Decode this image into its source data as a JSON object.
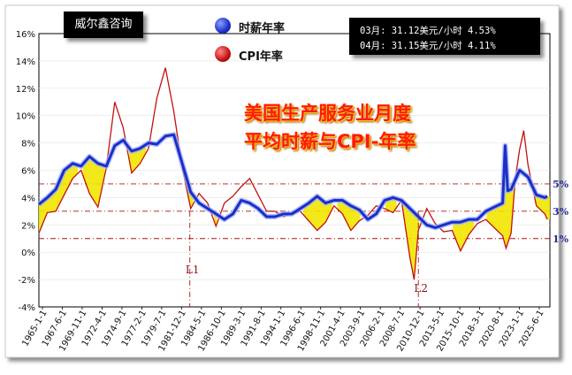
{
  "brand": "威尔鑫咨询",
  "info": [
    "03月: 31.12美元/小时 4.53%",
    "04月: 31.15美元/小时 4.11%"
  ],
  "overlay_title": [
    "美国生产服务业月度",
    "平均时薪与CPI-年率"
  ],
  "legend": {
    "wage": {
      "label": "时薪年率",
      "color": "#1a2fc8"
    },
    "cpi": {
      "label": "CPI年率",
      "color": "#c41010"
    }
  },
  "markers": [
    "L1",
    "L2"
  ],
  "ref_labels": [
    "5%",
    "3%",
    "1%"
  ],
  "chart_data": {
    "type": "line",
    "title": "美国生产服务业月度平均时薪与CPI-年率",
    "ylim": [
      -4,
      16
    ],
    "yticks": [
      "-4%",
      "-2%",
      "0%",
      "2%",
      "4%",
      "6%",
      "8%",
      "10%",
      "12%",
      "14%",
      "16%"
    ],
    "xlim": [
      1965.0,
      2025.6
    ],
    "xtick_labels": [
      "1965-1-1",
      "1967-6-1",
      "1969-11-1",
      "1972-4-1",
      "1974-9-1",
      "1977-2-1",
      "1979-7-1",
      "1981-12-1",
      "1984-5-1",
      "1986-10-1",
      "1989-3-1",
      "1991-8-1",
      "1994-1-1",
      "1996-6-1",
      "1998-11-1",
      "2001-4-1",
      "2003-9-1",
      "2006-2-1",
      "2008-7-1",
      "2010-12-1",
      "2013-5-1",
      "2015-10-1",
      "2018-3-1",
      "2020-8-1",
      "2023-1-1",
      "2025-6-1"
    ],
    "reference_lines": [
      5,
      3,
      1
    ],
    "vertical_markers": [
      {
        "label": "L1",
        "x": 1982.9
      },
      {
        "label": "L2",
        "x": 2010.0
      }
    ],
    "series": [
      {
        "name": "时薪年率",
        "color": "#1a2fc8",
        "x": [
          1965.0,
          1966.0,
          1967.0,
          1968.0,
          1969.0,
          1970.0,
          1971.0,
          1972.0,
          1973.0,
          1974.0,
          1975.0,
          1976.0,
          1977.0,
          1978.0,
          1979.0,
          1980.0,
          1981.0,
          1982.0,
          1983.0,
          1984.0,
          1985.0,
          1986.0,
          1987.0,
          1988.0,
          1989.0,
          1990.0,
          1991.0,
          1992.0,
          1993.0,
          1994.0,
          1995.0,
          1996.0,
          1997.0,
          1998.0,
          1999.0,
          2000.0,
          2001.0,
          2002.0,
          2003.0,
          2004.0,
          2005.0,
          2006.0,
          2007.0,
          2008.0,
          2009.0,
          2010.0,
          2011.0,
          2012.0,
          2013.0,
          2014.0,
          2015.0,
          2016.0,
          2017.0,
          2018.0,
          2019.0,
          2020.0,
          2020.3,
          2020.6,
          2021.0,
          2022.0,
          2023.0,
          2024.0,
          2025.0,
          2025.3
        ],
        "values": [
          3.5,
          4.0,
          4.6,
          6.0,
          6.5,
          6.3,
          7.0,
          6.5,
          6.3,
          7.8,
          8.2,
          7.4,
          7.6,
          8.0,
          7.9,
          8.5,
          8.6,
          6.5,
          4.4,
          3.6,
          3.2,
          2.8,
          2.4,
          2.8,
          3.8,
          3.6,
          3.2,
          2.6,
          2.6,
          2.8,
          2.8,
          3.2,
          3.6,
          4.1,
          3.6,
          3.8,
          3.8,
          3.4,
          3.1,
          2.4,
          2.8,
          3.8,
          4.0,
          3.8,
          3.2,
          2.6,
          2.0,
          1.8,
          2.0,
          2.2,
          2.2,
          2.4,
          2.4,
          3.0,
          3.3,
          3.6,
          7.8,
          4.5,
          4.6,
          6.0,
          5.5,
          4.2,
          4.0,
          4.1
        ]
      },
      {
        "name": "CPI年率",
        "color": "#c41010",
        "x": [
          1965.0,
          1966.0,
          1967.0,
          1968.0,
          1969.0,
          1970.0,
          1971.0,
          1972.0,
          1973.0,
          1974.0,
          1975.0,
          1976.0,
          1977.0,
          1978.0,
          1979.0,
          1980.0,
          1981.0,
          1982.0,
          1983.0,
          1984.0,
          1985.0,
          1986.0,
          1987.0,
          1988.0,
          1989.0,
          1990.0,
          1991.0,
          1992.0,
          1993.0,
          1994.0,
          1995.0,
          1996.0,
          1997.0,
          1998.0,
          1999.0,
          2000.0,
          2001.0,
          2002.0,
          2003.0,
          2004.0,
          2005.0,
          2006.0,
          2007.0,
          2008.0,
          2009.0,
          2009.5,
          2010.0,
          2011.0,
          2012.0,
          2013.0,
          2014.0,
          2015.0,
          2016.0,
          2017.0,
          2018.0,
          2019.0,
          2020.0,
          2020.4,
          2021.0,
          2021.5,
          2022.0,
          2022.5,
          2023.0,
          2024.0,
          2025.0,
          2025.3
        ],
        "values": [
          1.4,
          2.9,
          3.0,
          4.2,
          5.4,
          6.0,
          4.3,
          3.3,
          6.2,
          11.0,
          9.1,
          5.8,
          6.5,
          7.6,
          11.3,
          13.5,
          10.3,
          6.2,
          3.2,
          4.3,
          3.6,
          1.9,
          3.6,
          4.1,
          4.8,
          5.4,
          4.2,
          3.0,
          3.0,
          2.6,
          2.8,
          3.0,
          2.3,
          1.6,
          2.2,
          3.4,
          2.8,
          1.6,
          2.3,
          2.7,
          3.4,
          3.2,
          2.9,
          3.8,
          -0.4,
          -2.0,
          1.6,
          3.2,
          2.1,
          1.5,
          1.6,
          0.1,
          1.3,
          2.1,
          2.4,
          1.8,
          1.2,
          0.3,
          1.4,
          5.4,
          7.5,
          8.9,
          6.4,
          3.4,
          2.8,
          2.4
        ]
      }
    ]
  }
}
